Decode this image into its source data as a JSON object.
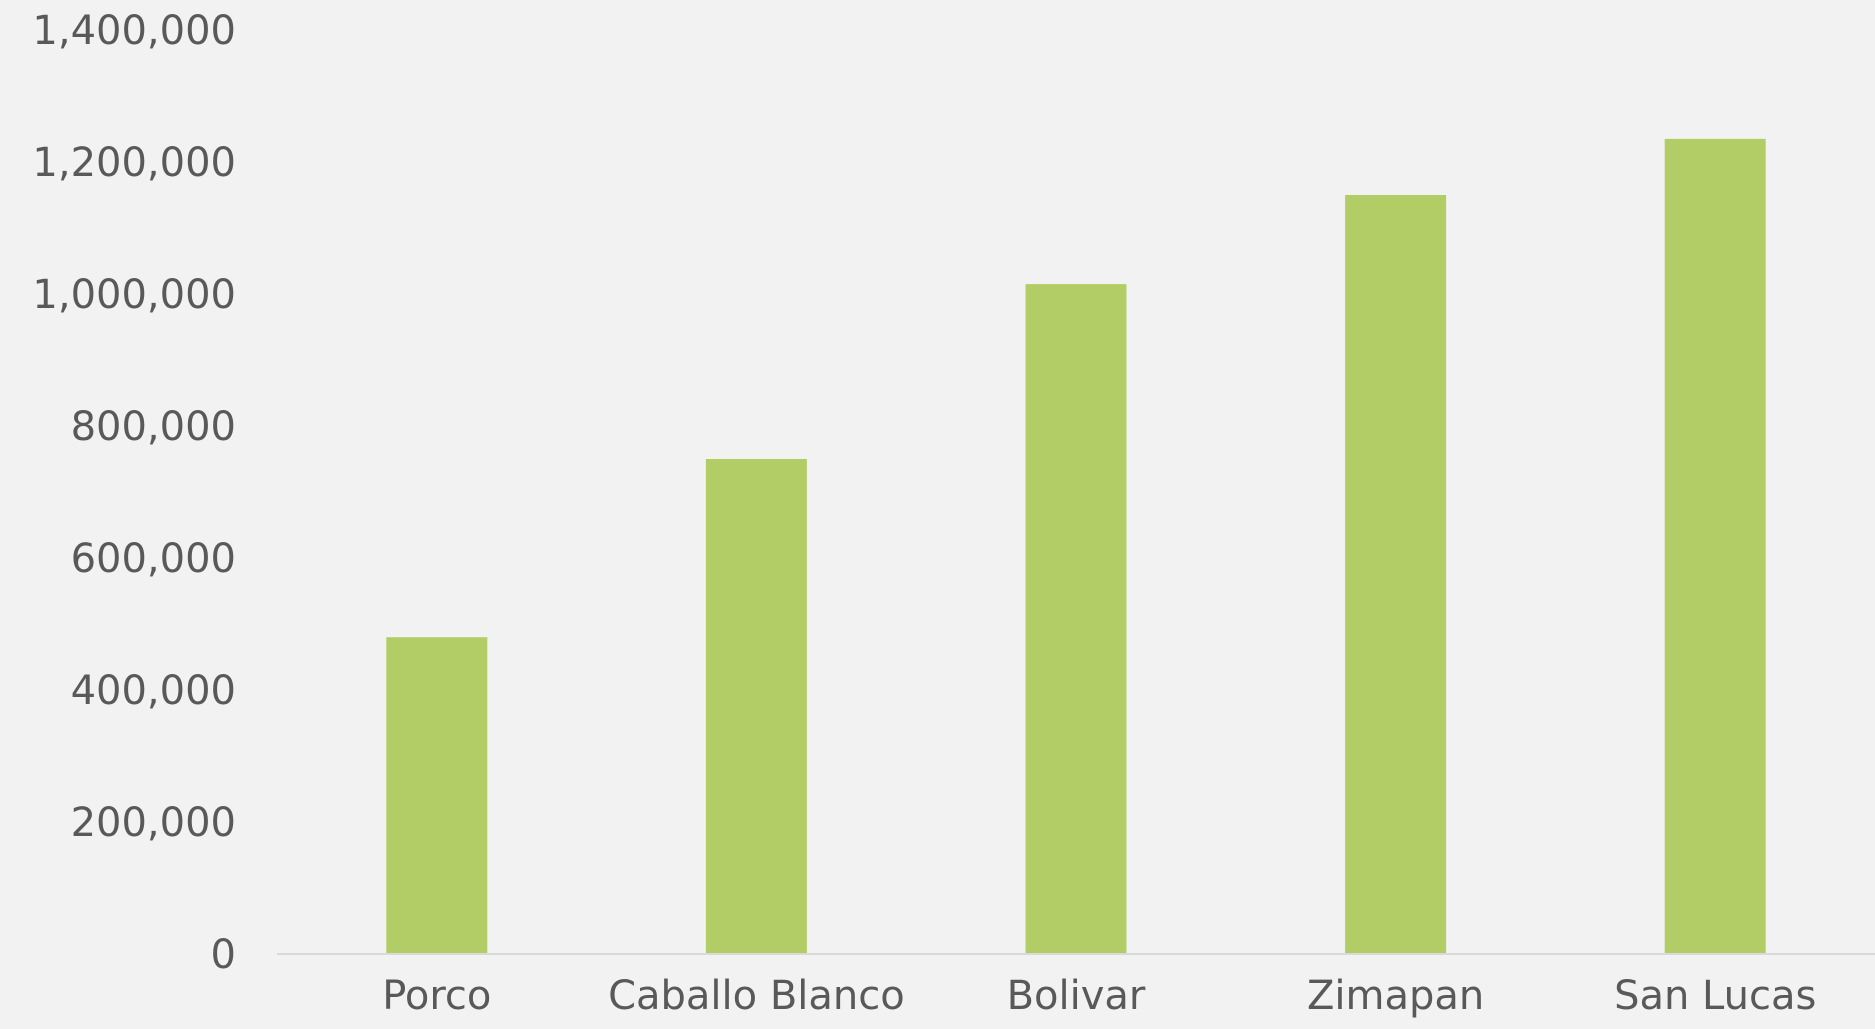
{
  "colors": {
    "background": "#f2f2f2",
    "bar": "#b3cd66",
    "axis_line": "#d9d9d9",
    "text": "#595959"
  },
  "chart_data": {
    "type": "bar",
    "title": "",
    "xlabel": "",
    "ylabel": "",
    "categories": [
      "Porco",
      "Caballo Blanco",
      "Bolivar",
      "Zimapan",
      "San Lucas"
    ],
    "values": [
      480000,
      750000,
      1015000,
      1150000,
      1235000
    ],
    "ylim": [
      0,
      1400000
    ],
    "yticks": [
      0,
      200000,
      400000,
      600000,
      800000,
      1000000,
      1200000,
      1400000
    ],
    "ytick_labels": [
      "0",
      "200,000",
      "400,000",
      "600,000",
      "800,000",
      "1,000,000",
      "1,200,000",
      "1,400,000"
    ],
    "grid": false,
    "legend": "none"
  }
}
